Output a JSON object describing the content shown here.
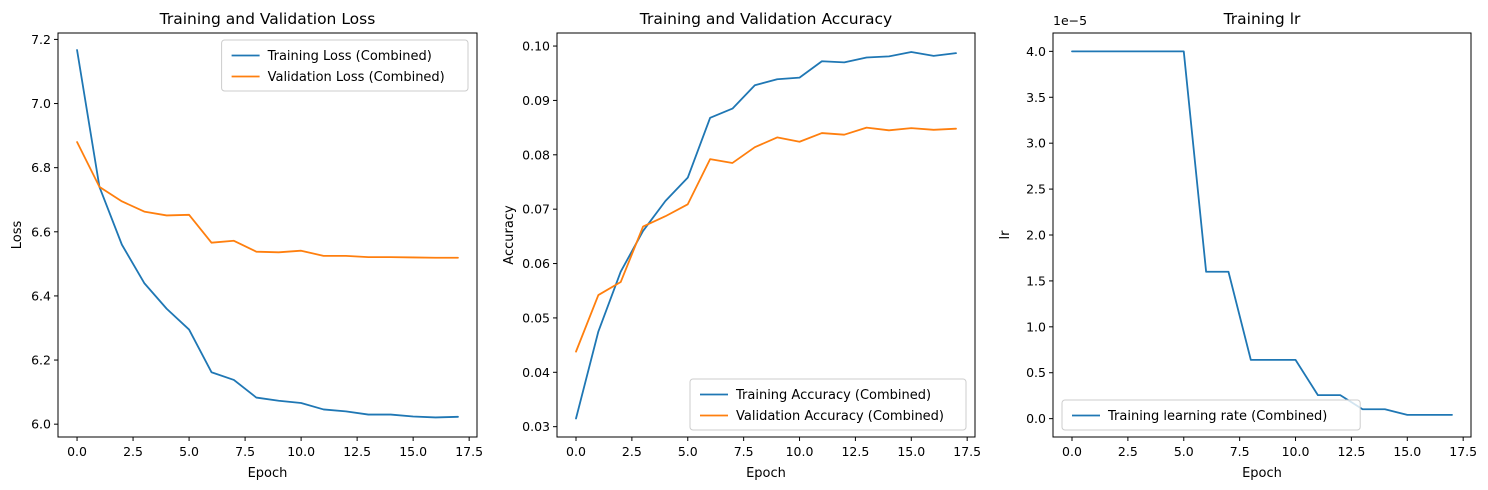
{
  "chart_data": [
    {
      "type": "line",
      "title": "Training and Validation Loss",
      "xlabel": "Epoch",
      "ylabel": "Loss",
      "xlim": [
        -0.85,
        17.85
      ],
      "ylim": [
        5.96,
        7.22
      ],
      "xticks": [
        0,
        2.5,
        5,
        7.5,
        10,
        12.5,
        15,
        17.5
      ],
      "xtick_labels": [
        "0.0",
        "2.5",
        "5.0",
        "7.5",
        "10.0",
        "12.5",
        "15.0",
        "17.5"
      ],
      "yticks": [
        6.0,
        6.2,
        6.4,
        6.6,
        6.8,
        7.0,
        7.2
      ],
      "ytick_labels": [
        "6.0",
        "6.2",
        "6.4",
        "6.6",
        "6.8",
        "7.0",
        "7.2"
      ],
      "offset_text": "",
      "legend_position": "upper-right",
      "grid": false,
      "x": [
        0,
        1,
        2,
        3,
        4,
        5,
        6,
        7,
        8,
        9,
        10,
        11,
        12,
        13,
        14,
        15,
        16,
        17
      ],
      "series": [
        {
          "name": "Training Loss (Combined)",
          "color": "#1f77b4",
          "values": [
            7.167,
            6.74,
            6.56,
            6.44,
            6.36,
            6.295,
            6.162,
            6.138,
            6.083,
            6.073,
            6.066,
            6.046,
            6.04,
            6.03,
            6.03,
            6.024,
            6.021,
            6.023
          ]
        },
        {
          "name": "Validation Loss (Combined)",
          "color": "#ff7f0e",
          "values": [
            6.88,
            6.74,
            6.695,
            6.663,
            6.651,
            6.653,
            6.566,
            6.572,
            6.538,
            6.536,
            6.541,
            6.525,
            6.525,
            6.521,
            6.521,
            6.52,
            6.519,
            6.519
          ]
        }
      ]
    },
    {
      "type": "line",
      "title": "Training and Validation Accuracy",
      "xlabel": "Epoch",
      "ylabel": "Accuracy",
      "xlim": [
        -0.85,
        17.85
      ],
      "ylim": [
        0.0281,
        0.1024
      ],
      "xticks": [
        0,
        2.5,
        5,
        7.5,
        10,
        12.5,
        15,
        17.5
      ],
      "xtick_labels": [
        "0.0",
        "2.5",
        "5.0",
        "7.5",
        "10.0",
        "12.5",
        "15.0",
        "17.5"
      ],
      "yticks": [
        0.03,
        0.04,
        0.05,
        0.06,
        0.07,
        0.08,
        0.09,
        0.1
      ],
      "ytick_labels": [
        "0.03",
        "0.04",
        "0.05",
        "0.06",
        "0.07",
        "0.08",
        "0.09",
        "0.10"
      ],
      "offset_text": "",
      "legend_position": "lower-right",
      "grid": false,
      "x": [
        0,
        1,
        2,
        3,
        4,
        5,
        6,
        7,
        8,
        9,
        10,
        11,
        12,
        13,
        14,
        15,
        16,
        17
      ],
      "series": [
        {
          "name": "Training Accuracy (Combined)",
          "color": "#1f77b4",
          "values": [
            0.0315,
            0.0475,
            0.0585,
            0.066,
            0.0715,
            0.0758,
            0.0868,
            0.0885,
            0.0928,
            0.0939,
            0.0942,
            0.0972,
            0.097,
            0.0979,
            0.0981,
            0.0989,
            0.0982,
            0.0987
          ]
        },
        {
          "name": "Validation Accuracy (Combined)",
          "color": "#ff7f0e",
          "values": [
            0.0438,
            0.0542,
            0.0566,
            0.0668,
            0.0687,
            0.0709,
            0.0792,
            0.0785,
            0.0814,
            0.0832,
            0.0824,
            0.084,
            0.0837,
            0.085,
            0.0845,
            0.0849,
            0.0846,
            0.0848
          ]
        }
      ]
    },
    {
      "type": "line",
      "title": "Training lr",
      "xlabel": "Epoch",
      "ylabel": "lr",
      "xlim": [
        -0.85,
        17.85
      ],
      "ylim": [
        -0.2,
        4.2
      ],
      "xticks": [
        0,
        2.5,
        5,
        7.5,
        10,
        12.5,
        15,
        17.5
      ],
      "xtick_labels": [
        "0.0",
        "2.5",
        "5.0",
        "7.5",
        "10.0",
        "12.5",
        "15.0",
        "17.5"
      ],
      "yticks": [
        0.0,
        0.5,
        1.0,
        1.5,
        2.0,
        2.5,
        3.0,
        3.5,
        4.0
      ],
      "ytick_labels": [
        "0.0",
        "0.5",
        "1.0",
        "1.5",
        "2.0",
        "2.5",
        "3.0",
        "3.5",
        "4.0"
      ],
      "offset_text": "1e−5",
      "legend_position": "lower-left",
      "grid": false,
      "x": [
        0,
        1,
        2,
        3,
        4,
        5,
        6,
        7,
        8,
        9,
        10,
        11,
        12,
        13,
        14,
        15,
        16,
        17
      ],
      "series": [
        {
          "name": "Training learning rate (Combined)",
          "color": "#1f77b4",
          "values": [
            4.0,
            4.0,
            4.0,
            4.0,
            4.0,
            4.0,
            1.6,
            1.6,
            0.64,
            0.64,
            0.64,
            0.256,
            0.256,
            0.1024,
            0.1024,
            0.041,
            0.041,
            0.041
          ]
        }
      ]
    }
  ]
}
